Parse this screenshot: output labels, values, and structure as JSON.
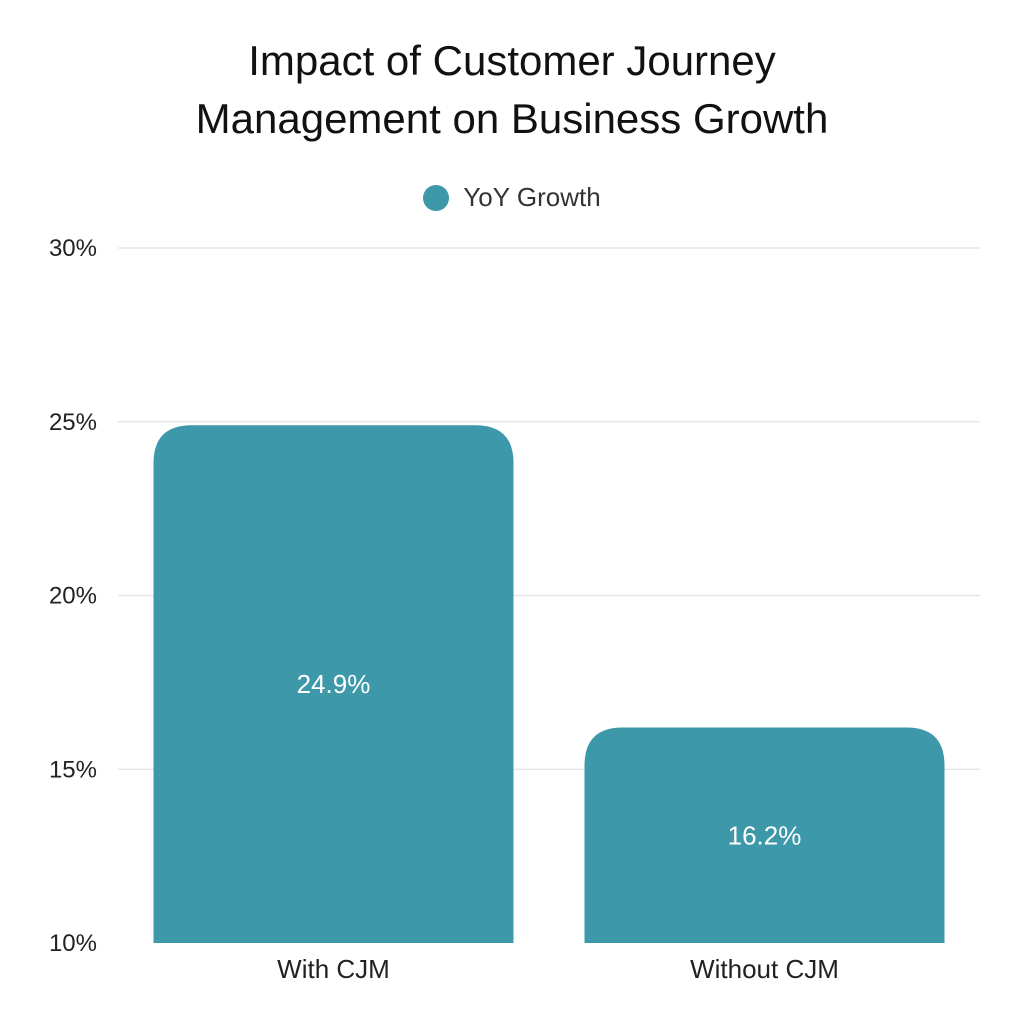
{
  "chart_data": {
    "type": "bar",
    "title_lines": [
      "Impact of Customer Journey",
      "Management on Business Growth"
    ],
    "categories": [
      "With CJM",
      "Without CJM"
    ],
    "series": [
      {
        "name": "YoY Growth",
        "values": [
          24.9,
          16.2
        ],
        "data_labels": [
          "24.9%",
          "16.2%"
        ],
        "color": "#3d98aa"
      }
    ],
    "ylim": [
      10,
      30
    ],
    "yticks": [
      10,
      15,
      20,
      25,
      30
    ],
    "ytick_labels": [
      "10%",
      "15%",
      "20%",
      "25%",
      "30%"
    ],
    "xlabel": "",
    "ylabel": "",
    "grid": true,
    "legend_position": "top-center"
  }
}
